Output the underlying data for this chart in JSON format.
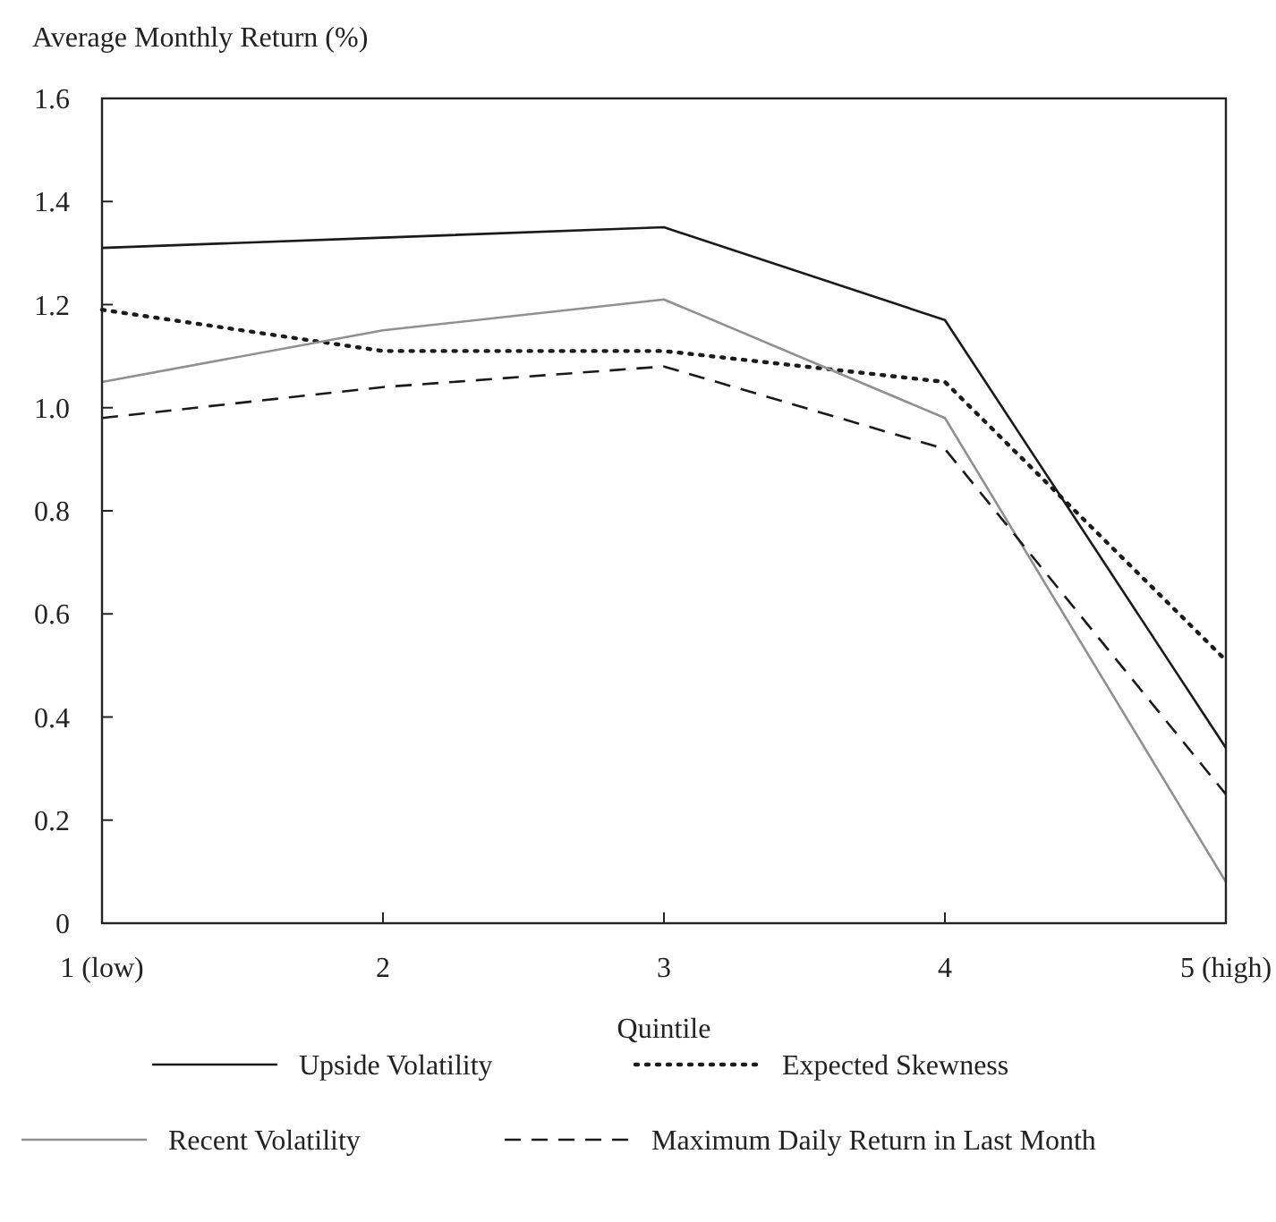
{
  "chart_data": {
    "type": "line",
    "ylabel": "Average Monthly Return (%)",
    "xlabel": "Quintile",
    "categories": [
      "1 (low)",
      "2",
      "3",
      "4",
      "5 (high)"
    ],
    "ylim": [
      0,
      1.6
    ],
    "yticks": [
      0,
      0.2,
      0.4,
      0.6,
      0.8,
      {
        "value": 1,
        "label": "1.0"
      },
      1.2,
      1.4,
      1.6
    ],
    "grid": false,
    "legend": "bottom",
    "marker": "none",
    "series": [
      {
        "name": "Upside Volatility",
        "color": "#1a1a1a",
        "line_style": "solid",
        "values": [
          1.31,
          1.33,
          1.35,
          1.17,
          0.34
        ]
      },
      {
        "name": "Expected Skewness",
        "color": "#1a1a1a",
        "line_style": "dotted",
        "values": [
          1.19,
          1.11,
          1.11,
          1.05,
          0.51
        ]
      },
      {
        "name": "Recent Volatility",
        "color": "#909090",
        "line_style": "solid",
        "values": [
          1.05,
          1.15,
          1.21,
          0.98,
          0.08
        ]
      },
      {
        "name": "Maximum Daily Return in Last Month",
        "color": "#1a1a1a",
        "line_style": "dashed",
        "values": [
          0.98,
          1.04,
          1.08,
          0.92,
          0.25
        ]
      }
    ]
  }
}
